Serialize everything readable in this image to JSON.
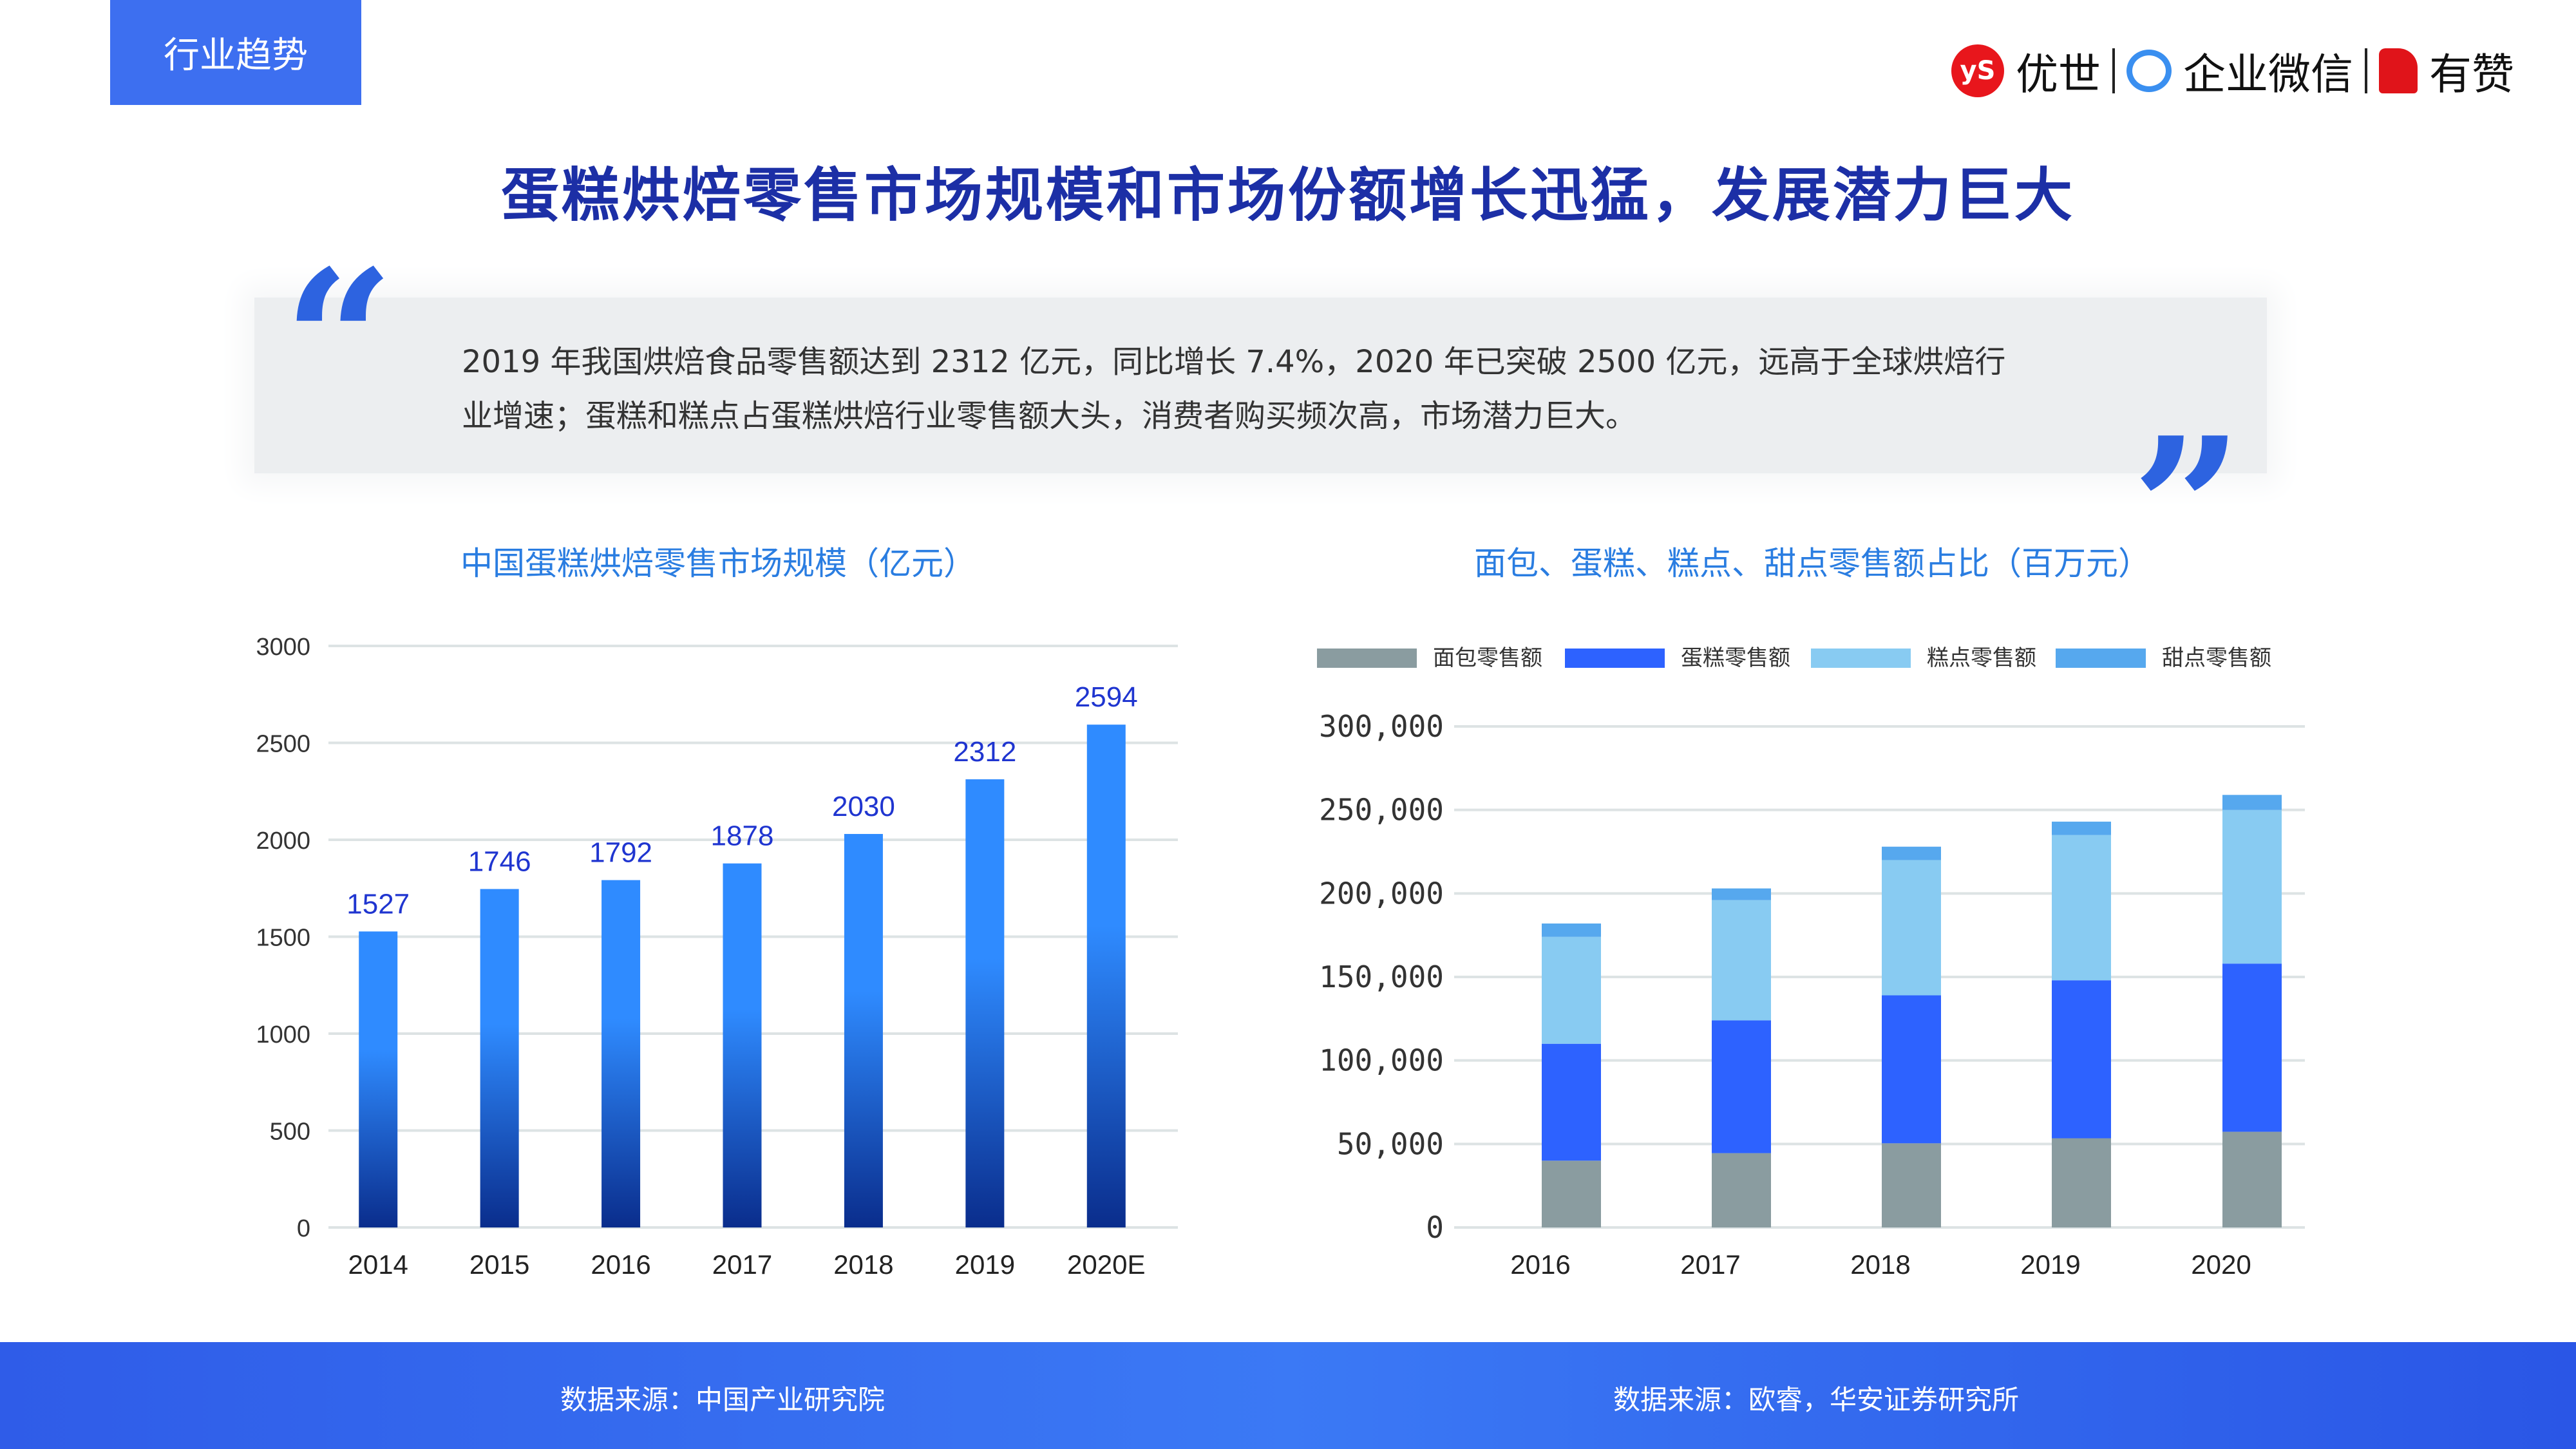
{
  "header": {
    "tag": "行业趋势",
    "logos": {
      "ys_mark": "yS",
      "ys": "优世",
      "wecom": "企业微信",
      "youzan": "有赞"
    }
  },
  "title": "蛋糕烘焙零售市场规模和市场份额增长迅猛，发展潜力巨大",
  "quote": {
    "open": "“",
    "close": "”",
    "lines": [
      "2019 年我国烘焙食品零售额达到 2312 亿元，同比增长 7.4%，2020 年已突破 2500 亿元，远高于全球烘焙行",
      "业增速；蛋糕和糕点占蛋糕烘焙行业零售额大头，消费者购买频次高，市场潜力巨大。"
    ]
  },
  "colors": {
    "accent": "#3d6ff0",
    "title": "#1c2fa6",
    "bar_top": "#2f8bff",
    "bar_bottom": "#0a2d8c",
    "label": "#1f35d0"
  },
  "chart_data": [
    {
      "type": "bar",
      "title": "中国蛋糕烘焙零售市场规模（亿元）",
      "categories": [
        "2014",
        "2015",
        "2016",
        "2017",
        "2018",
        "2019",
        "2020E"
      ],
      "values": [
        1527,
        1746,
        1792,
        1878,
        2030,
        2312,
        2594
      ],
      "ylim": [
        0,
        3000
      ],
      "yticks": [
        "0",
        "500",
        "1000",
        "1500",
        "2000",
        "2500",
        "3000"
      ],
      "xlabel": "",
      "ylabel": "",
      "grid": true
    },
    {
      "type": "bar",
      "stacked": true,
      "title": "面包、蛋糕、糕点、甜点零售额占比（百万元）",
      "categories": [
        "2016",
        "2017",
        "2018",
        "2019",
        "2020"
      ],
      "series": [
        {
          "name": "面包零售额",
          "color": "#8a9ca0",
          "values": [
            40000,
            44500,
            50400,
            53400,
            57300
          ]
        },
        {
          "name": "蛋糕零售额",
          "color": "#2d62ff",
          "values": [
            70000,
            79500,
            88600,
            94600,
            100700
          ]
        },
        {
          "name": "糕点零售额",
          "color": "#88cbf2",
          "values": [
            64000,
            72000,
            81000,
            87000,
            92000
          ]
        },
        {
          "name": "甜点零售额",
          "color": "#56a8ee",
          "values": [
            8000,
            7000,
            8000,
            8000,
            9000
          ]
        }
      ],
      "ylim": [
        0,
        300000
      ],
      "yticks": [
        "0",
        "50,000",
        "100,000",
        "150,000",
        "200,000",
        "250,000",
        "300,000"
      ],
      "legend": "top",
      "grid": true
    }
  ],
  "footer": {
    "source_left": "数据来源：中国产业研究院",
    "source_right": "数据来源：欧睿，华安证券研究所"
  }
}
